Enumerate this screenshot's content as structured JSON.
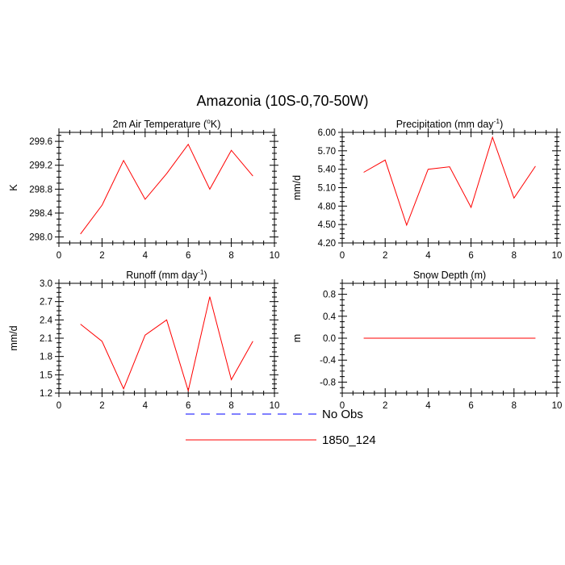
{
  "figure": {
    "title": "Amazonia (10S-0,70-50W)"
  },
  "legend": {
    "items": [
      {
        "label": "No Obs",
        "color": "#0000ff",
        "dash": true
      },
      {
        "label": "1850_124",
        "color": "#ff0000",
        "dash": false
      }
    ]
  },
  "chart_data": [
    {
      "type": "line",
      "title": "2m Air Temperature (°K)",
      "title_main": "2m Air Temperature (",
      "title_sup": "o",
      "title_tail": "K)",
      "xlabel": "",
      "ylabel": "K",
      "xlim": [
        0,
        10
      ],
      "ylim": [
        297.9,
        299.75
      ],
      "xticks": [
        0,
        2,
        4,
        6,
        8,
        10
      ],
      "xtick_labels": [
        "0",
        "2",
        "4",
        "6",
        "8",
        "10"
      ],
      "yticks": [
        298.0,
        298.4,
        298.8,
        299.2,
        299.6
      ],
      "ytick_labels": [
        "298.0",
        "298.4",
        "298.8",
        "299.2",
        "299.6"
      ],
      "series": [
        {
          "name": "1850_124",
          "color": "#ff0000",
          "x": [
            1,
            2,
            3,
            4,
            5,
            6,
            7,
            8,
            9
          ],
          "values": [
            298.05,
            298.53,
            299.28,
            298.63,
            299.06,
            299.55,
            298.8,
            299.45,
            299.02
          ]
        }
      ]
    },
    {
      "type": "line",
      "title": "Precipitation (mm day-1)",
      "title_main": "Precipitation (mm day",
      "title_sup": "-1",
      "title_tail": ")",
      "xlabel": "",
      "ylabel": "mm/d",
      "xlim": [
        0,
        10
      ],
      "ylim": [
        4.2,
        6.0
      ],
      "xticks": [
        0,
        2,
        4,
        6,
        8,
        10
      ],
      "xtick_labels": [
        "0",
        "2",
        "4",
        "6",
        "8",
        "10"
      ],
      "yticks": [
        4.2,
        4.5,
        4.8,
        5.1,
        5.4,
        5.7,
        6.0
      ],
      "ytick_labels": [
        "4.20",
        "4.50",
        "4.80",
        "5.10",
        "5.40",
        "5.70",
        "6.00"
      ],
      "series": [
        {
          "name": "1850_124",
          "color": "#ff0000",
          "x": [
            1,
            2,
            3,
            4,
            5,
            6,
            7,
            8,
            9
          ],
          "values": [
            5.35,
            5.55,
            4.49,
            5.4,
            5.44,
            4.78,
            5.92,
            4.93,
            5.45
          ]
        }
      ]
    },
    {
      "type": "line",
      "title": "Runoff (mm day-1)",
      "title_main": "Runoff (mm day",
      "title_sup": "-1",
      "title_tail": ")",
      "xlabel": "",
      "ylabel": "mm/d",
      "xlim": [
        0,
        10
      ],
      "ylim": [
        1.2,
        3.0
      ],
      "xticks": [
        0,
        2,
        4,
        6,
        8,
        10
      ],
      "xtick_labels": [
        "0",
        "2",
        "4",
        "6",
        "8",
        "10"
      ],
      "yticks": [
        1.2,
        1.5,
        1.8,
        2.1,
        2.4,
        2.7,
        3.0
      ],
      "ytick_labels": [
        "1.2",
        "1.5",
        "1.8",
        "2.1",
        "2.4",
        "2.7",
        "3.0"
      ],
      "series": [
        {
          "name": "1850_124",
          "color": "#ff0000",
          "x": [
            1,
            2,
            3,
            4,
            5,
            6,
            7,
            8,
            9
          ],
          "values": [
            2.33,
            2.05,
            1.27,
            2.15,
            2.4,
            1.24,
            2.78,
            1.42,
            2.05
          ]
        }
      ]
    },
    {
      "type": "line",
      "title": "Snow Depth (m)",
      "title_main": "Snow Depth (m)",
      "title_sup": "",
      "title_tail": "",
      "xlabel": "",
      "ylabel": "m",
      "xlim": [
        0,
        10
      ],
      "ylim": [
        -1.0,
        1.0
      ],
      "xticks": [
        0,
        2,
        4,
        6,
        8,
        10
      ],
      "xtick_labels": [
        "0",
        "2",
        "4",
        "6",
        "8",
        "10"
      ],
      "yticks": [
        -0.8,
        -0.4,
        0.0,
        0.4,
        0.8
      ],
      "ytick_labels": [
        "-0.8",
        "-0.4",
        "0.0",
        "0.4",
        "0.8"
      ],
      "series": [
        {
          "name": "1850_124",
          "color": "#ff0000",
          "x": [
            1,
            2,
            3,
            4,
            5,
            6,
            7,
            8,
            9
          ],
          "values": [
            0,
            0,
            0,
            0,
            0,
            0,
            0,
            0,
            0
          ]
        }
      ]
    }
  ]
}
